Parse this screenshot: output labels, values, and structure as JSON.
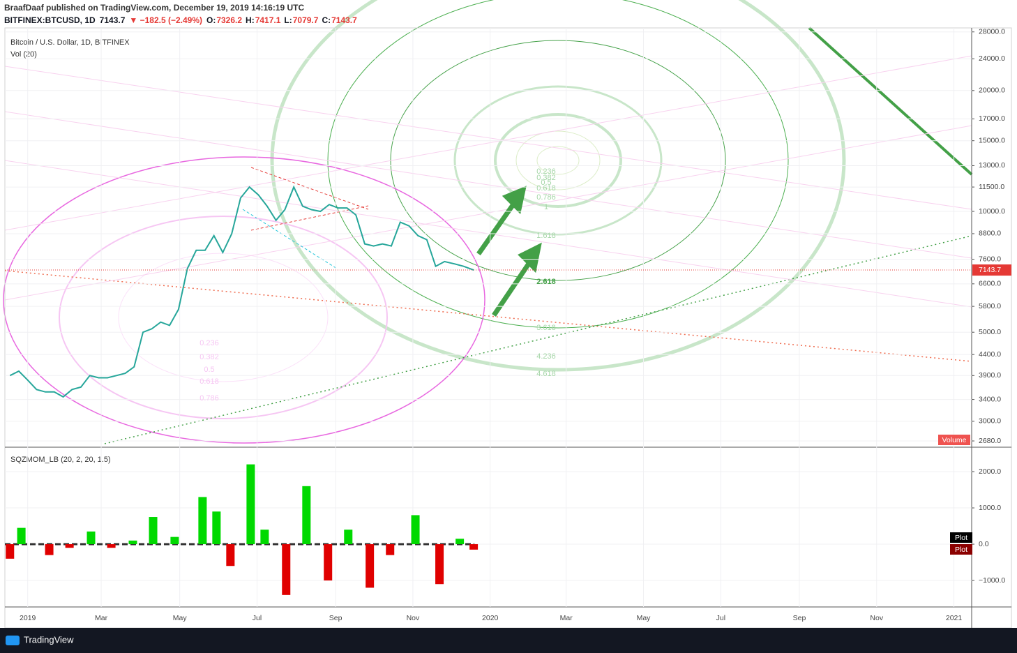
{
  "header": {
    "publisher": "BraafDaaf published on TradingView.com, December 19, 2019 14:16:19 UTC",
    "symbol_line": [
      "BITFINEX:BTCUSD, 1D",
      "7143.7",
      "▼ −182.5 (−2.49%)",
      "O:",
      "7326.2",
      "H:",
      "7417.1",
      "L:",
      "7079.7",
      "C:",
      "7143.7"
    ]
  },
  "footer": "TradingView",
  "chart_data": [
    {
      "type": "line",
      "title": "Bitcoin / U.S. Dollar, 1D, BITFINEX",
      "subtitle": "Vol (20)",
      "log": true,
      "color": "#26a69a",
      "x": [
        -14,
        -7,
        0,
        7,
        14,
        21,
        28,
        35,
        42,
        49,
        56,
        63,
        70,
        77,
        84,
        91,
        98,
        105,
        112,
        119,
        126,
        133,
        140,
        147,
        154,
        161,
        168,
        175,
        182,
        189,
        196,
        203,
        210,
        217,
        224,
        231,
        238,
        245,
        252,
        259,
        266,
        273,
        280,
        287,
        294,
        301,
        308,
        315,
        322,
        329,
        337,
        344,
        352
      ],
      "values": [
        3900,
        4000,
        3800,
        3600,
        3550,
        3550,
        3450,
        3600,
        3650,
        3900,
        3850,
        3850,
        3900,
        3950,
        4100,
        5000,
        5100,
        5300,
        5200,
        5700,
        7200,
        8000,
        8000,
        8700,
        7900,
        8800,
        10800,
        11500,
        11000,
        10300,
        9500,
        10100,
        11500,
        10300,
        10100,
        10000,
        10400,
        10200,
        10200,
        9800,
        8300,
        8200,
        8300,
        8200,
        9400,
        9200,
        8700,
        8500,
        7300,
        7500,
        7400,
        7300,
        7143.7
      ],
      "xlim": [
        -18,
        745
      ],
      "ylim": [
        2596,
        28650
      ],
      "yticks": [
        {
          "value": 28000,
          "label": "28000.0"
        },
        {
          "value": 24000,
          "label": "24000.0"
        },
        {
          "value": 20000,
          "label": "20000.0"
        },
        {
          "value": 17000,
          "label": "17000.0"
        },
        {
          "value": 15000,
          "label": "15000.0"
        },
        {
          "value": 13000,
          "label": "13000.0"
        },
        {
          "value": 11500,
          "label": "11500.0"
        },
        {
          "value": 10000,
          "label": "10000.0"
        },
        {
          "value": 8800,
          "label": "8800.0"
        },
        {
          "value": 7600,
          "label": "7600.0"
        },
        {
          "value": 6600,
          "label": "6600.0"
        },
        {
          "value": 5800,
          "label": "5800.0"
        },
        {
          "value": 5000,
          "label": "5000.0"
        },
        {
          "value": 4400,
          "label": "4400.0"
        },
        {
          "value": 3900,
          "label": "3900.0"
        },
        {
          "value": 3400,
          "label": "3400.0"
        },
        {
          "value": 3000,
          "label": "3000.0"
        },
        {
          "value": 2680,
          "label": "2680.0"
        }
      ],
      "xticks": [
        {
          "value": 0,
          "label": "2019"
        },
        {
          "value": 58,
          "label": "Mar"
        },
        {
          "value": 120,
          "label": "May"
        },
        {
          "value": 181,
          "label": "Jul"
        },
        {
          "value": 243,
          "label": "Sep"
        },
        {
          "value": 304,
          "label": "Nov"
        },
        {
          "value": 365,
          "label": "2020"
        },
        {
          "value": 425,
          "label": "Mar"
        },
        {
          "value": 486,
          "label": "May"
        },
        {
          "value": 547,
          "label": "Jul"
        },
        {
          "value": 609,
          "label": "Sep"
        },
        {
          "value": 670,
          "label": "Nov"
        },
        {
          "value": 731,
          "label": "2021"
        }
      ],
      "volume_label": "Volume",
      "fib_labels": [
        "0.236",
        "0.382",
        "0.5",
        "0.618",
        "0.786",
        "1",
        "1.618",
        "2.618",
        "3.618",
        "4.236",
        "4.618"
      ],
      "fib_labels_left": [
        "0.236",
        "0.382",
        "0.5",
        "0.618",
        "0.786"
      ]
    },
    {
      "type": "bar",
      "title": "SQZMOM_LB (20, 2, 20, 1.5)",
      "x": [
        -14,
        -5,
        17,
        33,
        50,
        66,
        83,
        99,
        116,
        138,
        149,
        160,
        176,
        187,
        204,
        220,
        237,
        253,
        270,
        286,
        306,
        325,
        341,
        352
      ],
      "values": [
        -400,
        450,
        -300,
        -100,
        350,
        -100,
        100,
        750,
        200,
        1300,
        900,
        -600,
        2200,
        400,
        -1400,
        1600,
        -1000,
        400,
        -1200,
        -300,
        800,
        -1100,
        150,
        -150
      ],
      "xlim": [
        -18,
        745
      ],
      "ylim": [
        -1730,
        2635
      ],
      "yticks": [
        {
          "value": 2000,
          "label": "2000.0"
        },
        {
          "value": 1000,
          "label": "1000.0"
        },
        {
          "value": 0,
          "label": "0.0"
        },
        {
          "value": -1000,
          "label": "−1000.0"
        }
      ],
      "up_color": "#00d900",
      "down_color": "#e00000",
      "legend": [
        "Plot",
        "Plot"
      ]
    }
  ]
}
